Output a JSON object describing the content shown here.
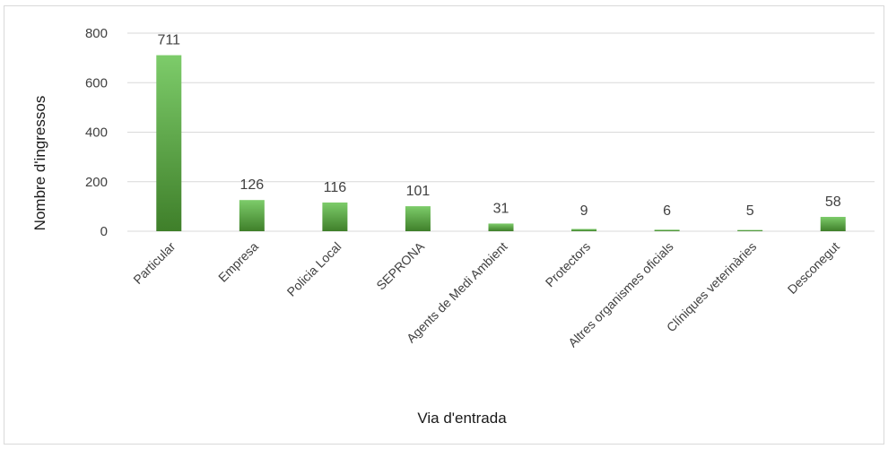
{
  "chart_data": {
    "type": "bar",
    "title": "",
    "xlabel": "Via d'entrada",
    "ylabel": "Nombre d'ingressos",
    "categories": [
      "Particular",
      "Empresa",
      "Policia Local",
      "SEPRONA",
      "Agents de Medi Ambient",
      "Protectors",
      "Altres organismes oficials",
      "Clíniques veterinàries",
      "Desconegut"
    ],
    "values": [
      711,
      126,
      116,
      101,
      31,
      9,
      6,
      5,
      58
    ],
    "ylim": [
      0,
      800
    ],
    "yticks": [
      0,
      200,
      400,
      600,
      800
    ],
    "grid": true,
    "legend": "none",
    "colors": {
      "bar_top": "#7dcc6a",
      "bar_bottom": "#3f7f2a",
      "grid": "#d9d9d9",
      "text": "#404040"
    }
  }
}
